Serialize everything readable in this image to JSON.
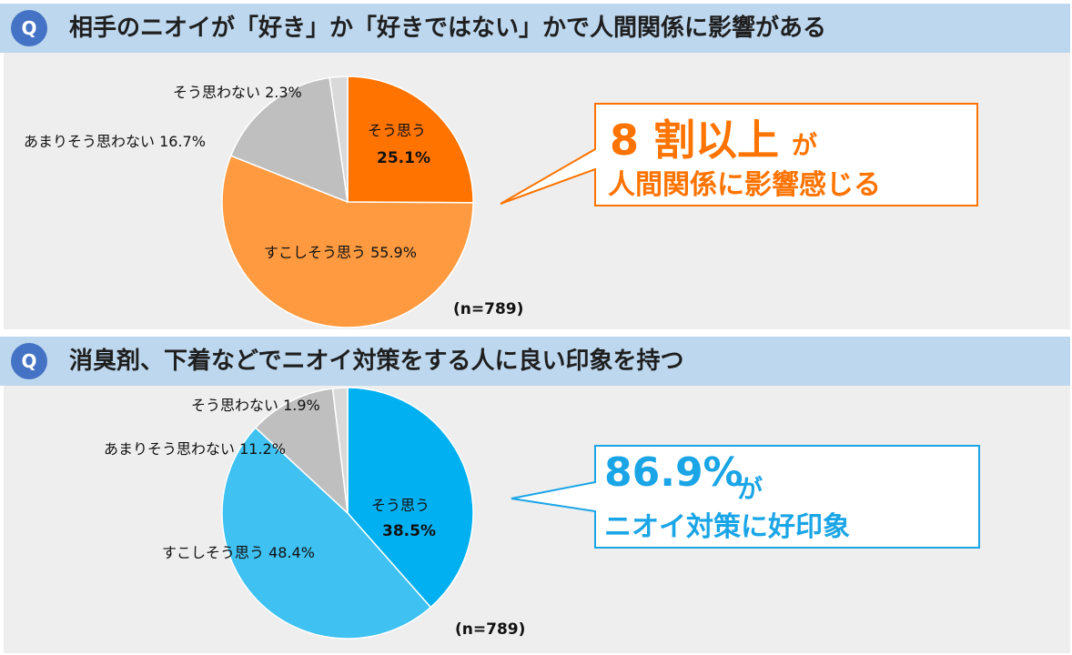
{
  "chart_data": [
    {
      "type": "pie",
      "title": "相手のニオイが「好き」か「好きではない」かで人間関係に影響がある",
      "categories": [
        "そう思う",
        "すこしそう思う",
        "あまりそう思わない",
        "そう思わない"
      ],
      "values": [
        25.1,
        55.9,
        16.7,
        2.3
      ],
      "colors": [
        "#ff7300",
        "#ff9a40",
        "#bfbfbf",
        "#d9d9d9"
      ],
      "labels": [
        "そう思う",
        "25.1%",
        "すこしそう思う 55.9%",
        "あまりそう思わない 16.7%",
        "そう思わない 2.3%"
      ],
      "n_label": "(n=789)",
      "callout": {
        "big": "8 割以上",
        "small": "が",
        "line2": "人間関係に影響感じる",
        "color": "#ff7300"
      }
    },
    {
      "type": "pie",
      "title": "消臭剤、下着などでニオイ対策をする人に良い印象を持つ",
      "categories": [
        "そう思う",
        "すこしそう思う",
        "あまりそう思わない",
        "そう思わない"
      ],
      "values": [
        38.5,
        48.4,
        11.2,
        1.9
      ],
      "colors": [
        "#00b0f0",
        "#3fc1f1",
        "#bfbfbf",
        "#d9d9d9"
      ],
      "labels": [
        "そう思う",
        "38.5%",
        "すこしそう思う 48.4%",
        "あまりそう思わない 11.2%",
        "そう思わない 1.9%"
      ],
      "n_label": "(n=789)",
      "callout": {
        "big": "86.9%",
        "small": "が",
        "line2": "ニオイ対策に好印象",
        "color": "#1aa5e6"
      }
    }
  ],
  "badge": "Q"
}
